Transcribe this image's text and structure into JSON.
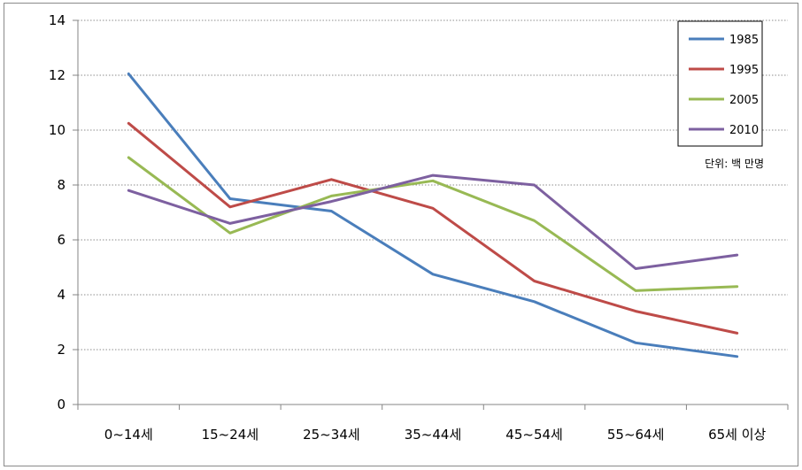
{
  "chart_data": {
    "type": "line",
    "title": "",
    "xlabel": "",
    "ylabel": "",
    "unit_note": "단위: 백 만명",
    "categories": [
      "0~14세",
      "15~24세",
      "25~34세",
      "35~44세",
      "45~54세",
      "55~64세",
      "65세 이상"
    ],
    "ylim": [
      0,
      14
    ],
    "yticks": [
      0,
      2,
      4,
      6,
      8,
      10,
      12,
      14
    ],
    "grid": "horizontal-dotted",
    "legend_position": "top-right",
    "series": [
      {
        "name": "1985",
        "color": "#4a7ebb",
        "values": [
          12.05,
          7.5,
          7.05,
          4.75,
          3.75,
          2.25,
          1.75
        ]
      },
      {
        "name": "1995",
        "color": "#be4b48",
        "values": [
          10.25,
          7.2,
          8.2,
          7.15,
          4.5,
          3.4,
          2.6
        ]
      },
      {
        "name": "2005",
        "color": "#98b954",
        "values": [
          9.0,
          6.25,
          7.6,
          8.15,
          6.7,
          4.15,
          4.3
        ]
      },
      {
        "name": "2010",
        "color": "#7d60a0",
        "values": [
          7.8,
          6.6,
          7.4,
          8.35,
          8.0,
          4.95,
          5.45
        ]
      }
    ]
  }
}
